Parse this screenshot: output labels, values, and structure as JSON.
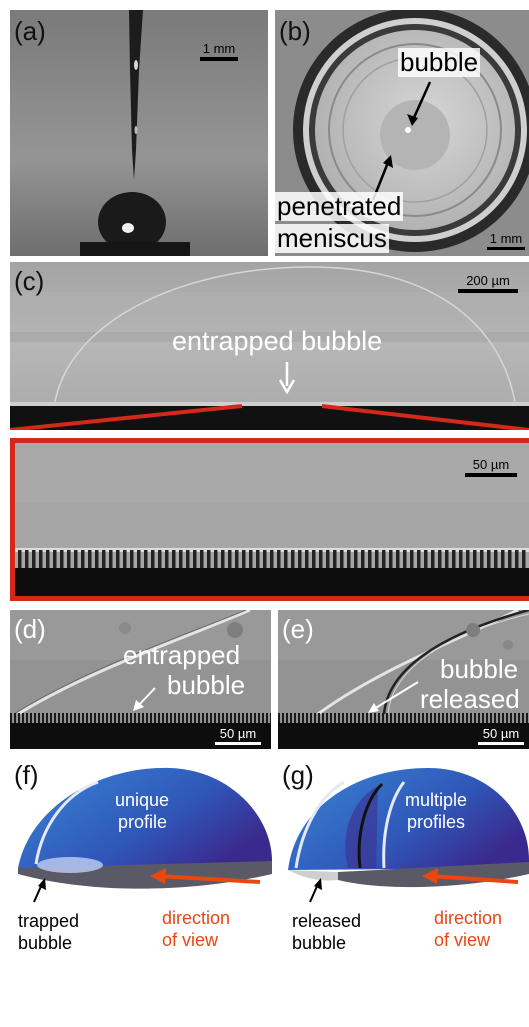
{
  "panels": {
    "a": {
      "label": "(a)",
      "scale_bar": "1 mm"
    },
    "b": {
      "label": "(b)",
      "scale_bar": "1 mm",
      "annotations": {
        "bubble": "bubble",
        "meniscus_line1": "penetrated",
        "meniscus_line2": "meniscus"
      }
    },
    "c": {
      "label": "(c)",
      "scale_bar": "200 µm",
      "annotation": "entrapped bubble",
      "inset_scale_bar": "50 µm"
    },
    "d": {
      "label": "(d)",
      "scale_bar": "50 µm",
      "annotation_line1": "entrapped",
      "annotation_line2": "bubble"
    },
    "e": {
      "label": "(e)",
      "scale_bar": "50 µm",
      "annotation_line1": "bubble",
      "annotation_line2": "released"
    },
    "f": {
      "label": "(f)",
      "profile_line1": "unique",
      "profile_line2": "profile",
      "bubble_line1": "trapped",
      "bubble_line2": "bubble",
      "view_line1": "direction",
      "view_line2": "of view"
    },
    "g": {
      "label": "(g)",
      "profile_line1": "multiple",
      "profile_line2": "profiles",
      "bubble_line1": "released",
      "bubble_line2": "bubble",
      "view_line1": "direction",
      "view_line2": "of view"
    }
  },
  "colors": {
    "inset_frame": "#d4281b",
    "view_arrow": "#e8480f",
    "dome_light": "#3a86d6",
    "dome_dark": "#3b2a8e"
  }
}
